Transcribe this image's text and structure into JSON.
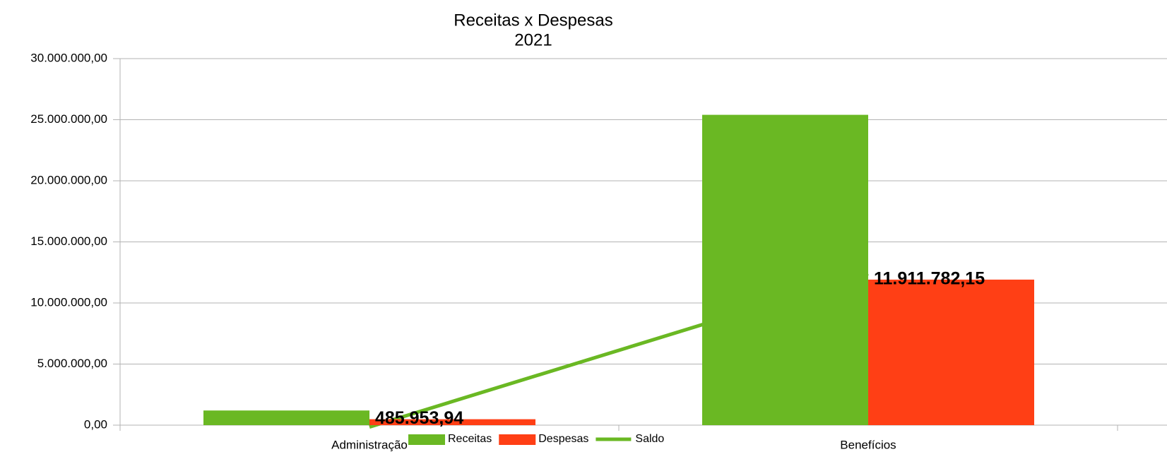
{
  "chart_data": {
    "type": "bar",
    "title": "Receitas x Despesas",
    "subtitle": "2021",
    "categories": [
      "Administração",
      "Benefícios"
    ],
    "series": [
      {
        "name": "Receitas",
        "color": "#6ab823",
        "values": [
          1200000,
          25400000
        ]
      },
      {
        "name": "Despesas",
        "color": "#ff3f15",
        "values": [
          485953.94,
          11911782.15
        ],
        "value_labels": [
          "485.953,94",
          "11.911.782,15"
        ]
      },
      {
        "name": "Saldo",
        "type": "line",
        "color": "#6ab823",
        "values": [
          -150000,
          12400000
        ]
      }
    ],
    "ylim": [
      0,
      30000000
    ],
    "yticks": [
      {
        "value": 0,
        "label": "0,00"
      },
      {
        "value": 5000000,
        "label": "5.000.000,00"
      },
      {
        "value": 10000000,
        "label": "10.000.000,00"
      },
      {
        "value": 15000000,
        "label": "15.000.000,00"
      },
      {
        "value": 20000000,
        "label": "20.000.000,00"
      },
      {
        "value": 25000000,
        "label": "25.000.000,00"
      },
      {
        "value": 30000000,
        "label": "30.000.000,00"
      }
    ],
    "grid": true,
    "legend": "bottom"
  }
}
